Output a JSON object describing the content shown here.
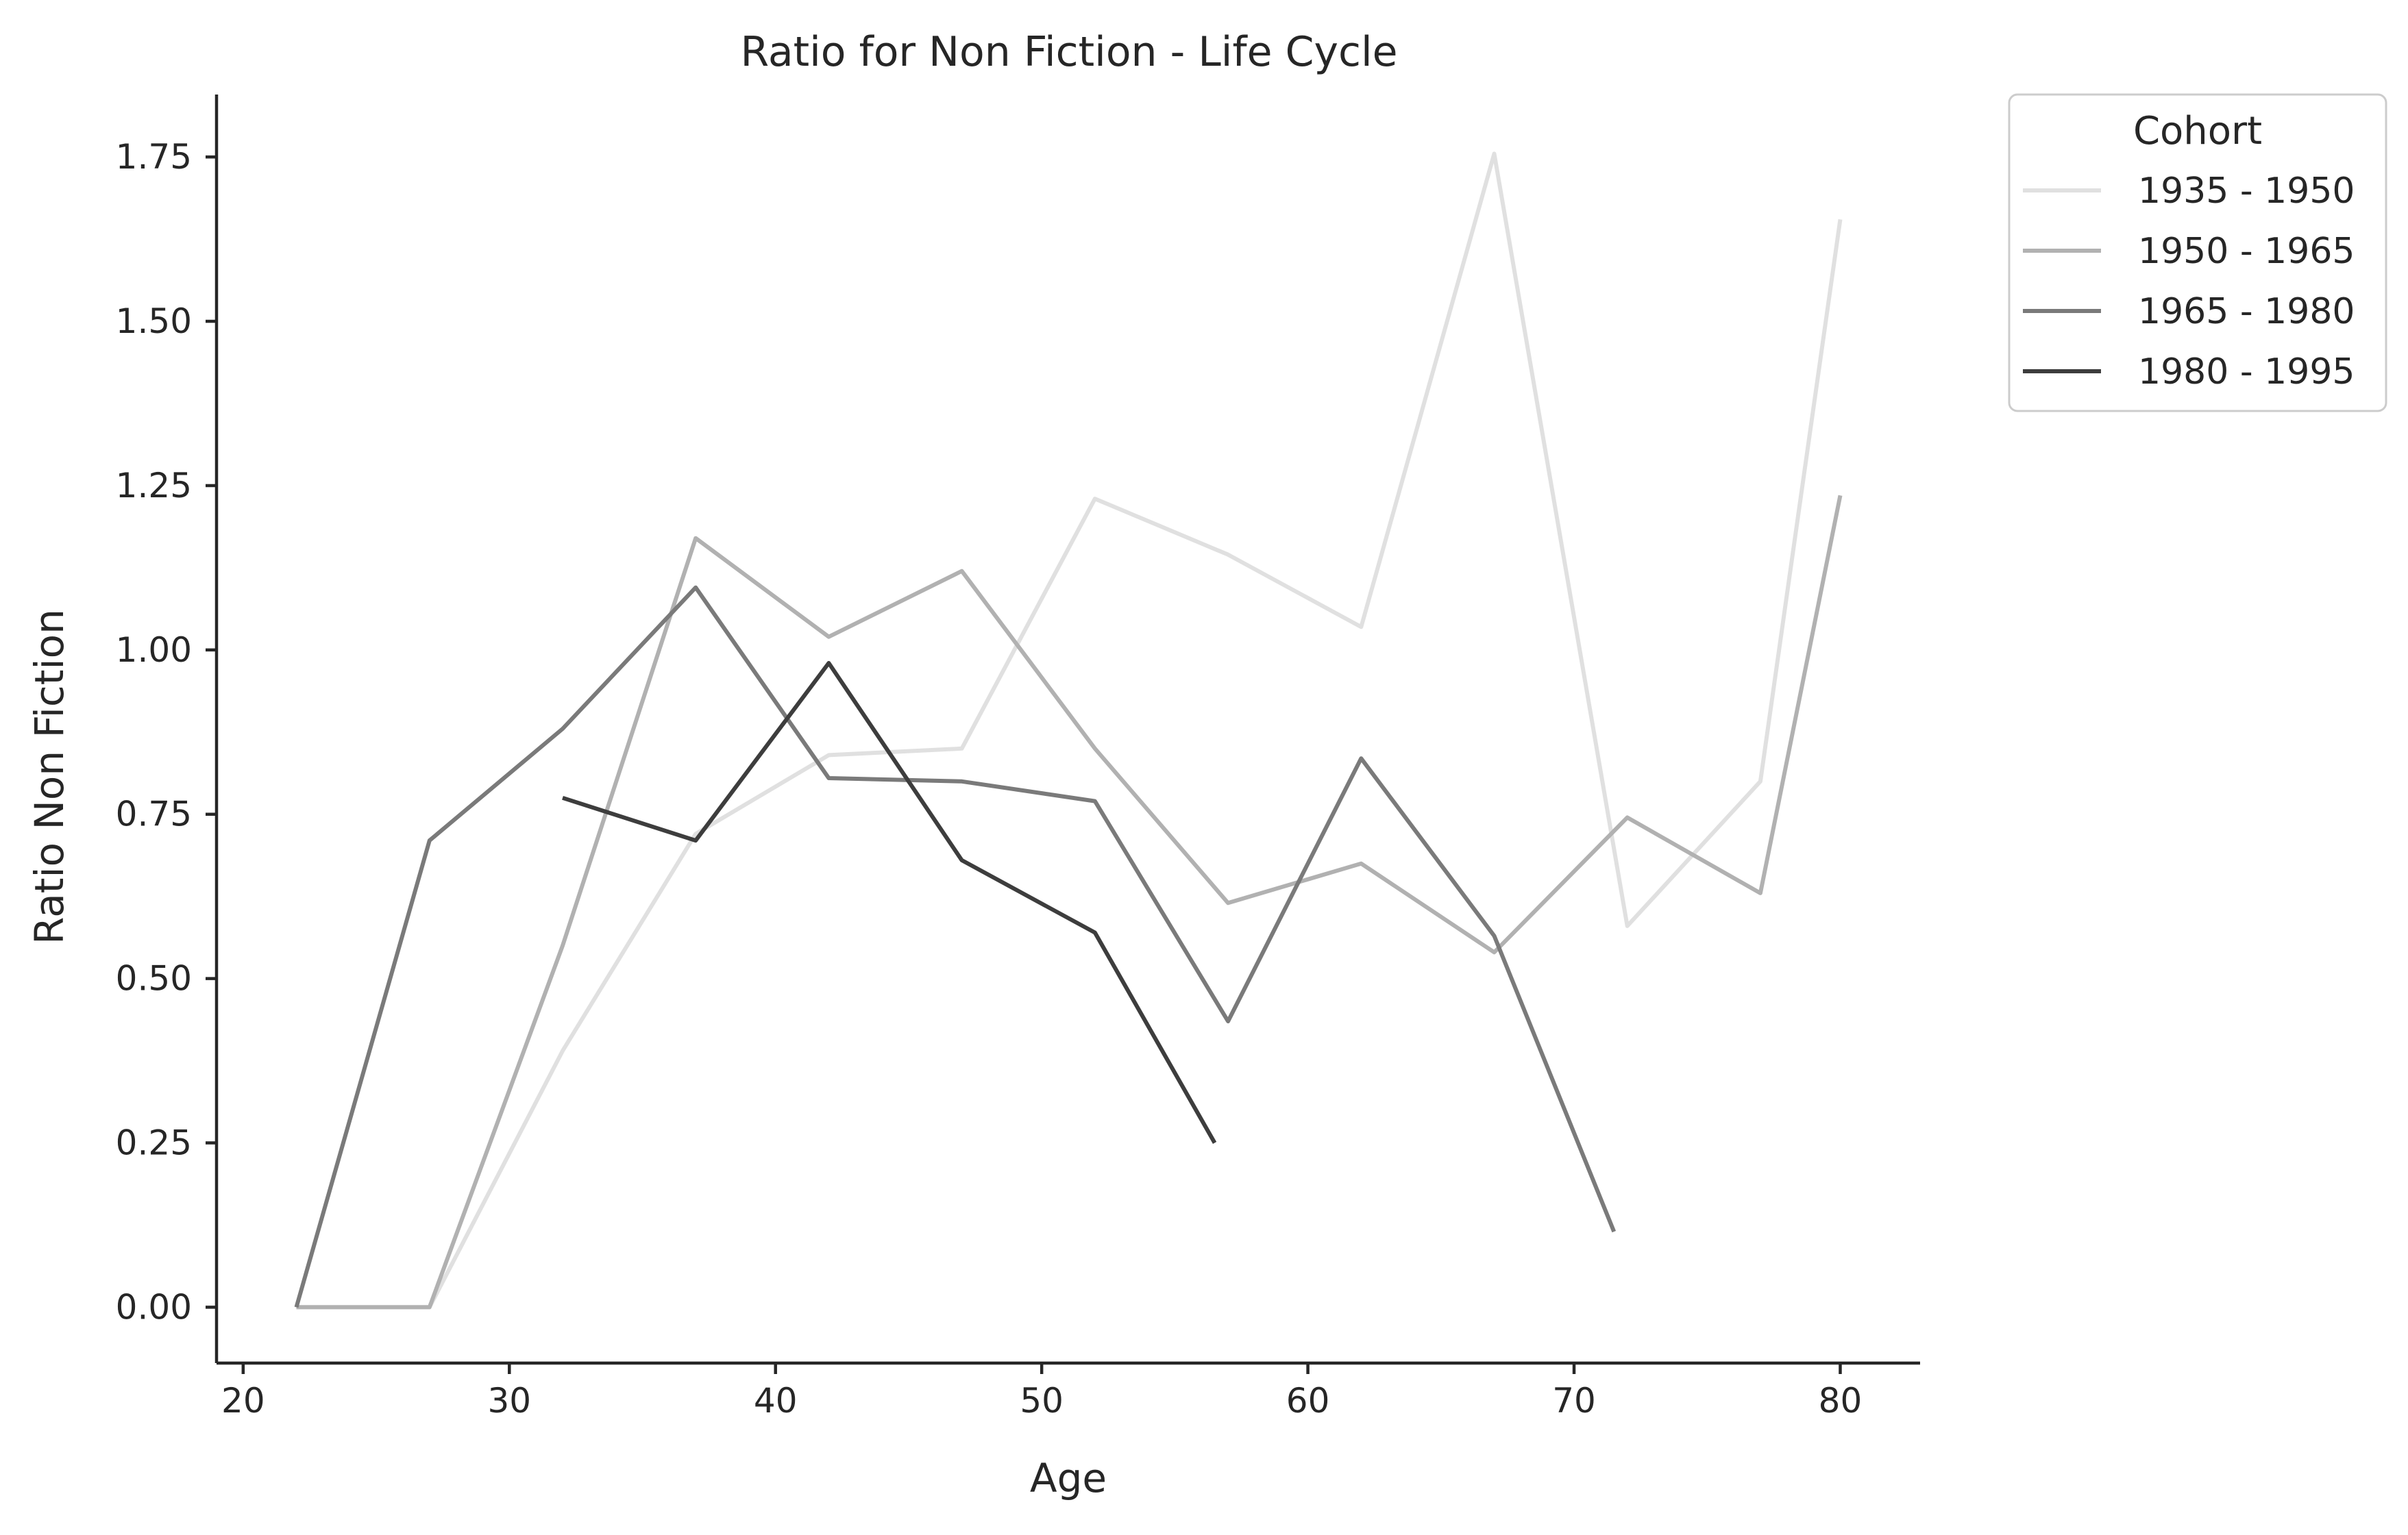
{
  "chart_data": {
    "type": "line",
    "title": "Ratio for Non Fiction - Life Cycle",
    "xlabel": "Age",
    "ylabel": "Ratio Non Fiction",
    "xlim": [
      19,
      83
    ],
    "ylim": [
      -0.085,
      1.845
    ],
    "xticks": [
      20,
      30,
      40,
      50,
      60,
      70,
      80
    ],
    "yticks": [
      0.0,
      0.25,
      0.5,
      0.75,
      1.0,
      1.25,
      1.5,
      1.75
    ],
    "ytick_labels": [
      "0.00",
      "0.25",
      "0.50",
      "0.75",
      "1.00",
      "1.25",
      "1.50",
      "1.75"
    ],
    "grid": false,
    "legend": {
      "title": "Cohort",
      "position": "outside-top-right"
    },
    "series": [
      {
        "name": "1935 - 1950",
        "color": "#e0e0e0",
        "x": [
          22,
          27,
          32,
          37,
          42,
          47,
          52,
          57,
          62,
          67,
          72,
          77,
          80
        ],
        "y": [
          0.0,
          0.0,
          0.39,
          0.72,
          0.84,
          0.85,
          1.23,
          1.145,
          1.035,
          1.755,
          0.58,
          0.8,
          1.655
        ]
      },
      {
        "name": "1950 - 1965",
        "color": "#b1b1b1",
        "x": [
          22,
          27,
          32,
          37,
          42,
          47,
          52,
          57,
          62,
          67,
          72,
          77,
          80
        ],
        "y": [
          0.0,
          0.0,
          0.55,
          1.17,
          1.02,
          1.12,
          0.85,
          0.615,
          0.675,
          0.54,
          0.745,
          0.63,
          1.235
        ]
      },
      {
        "name": "1965 - 1980",
        "color": "#7a7a7a",
        "x": [
          22,
          27,
          32,
          37,
          42,
          47,
          52,
          57,
          62,
          67,
          71.5
        ],
        "y": [
          0.0,
          0.71,
          0.88,
          1.095,
          0.805,
          0.8,
          0.77,
          0.435,
          0.835,
          0.565,
          0.115
        ]
      },
      {
        "name": "1980 - 1995",
        "color": "#3d3d3d",
        "x": [
          32,
          37,
          42,
          47,
          52,
          56.5
        ],
        "y": [
          0.775,
          0.71,
          0.98,
          0.68,
          0.57,
          0.25
        ]
      }
    ]
  }
}
